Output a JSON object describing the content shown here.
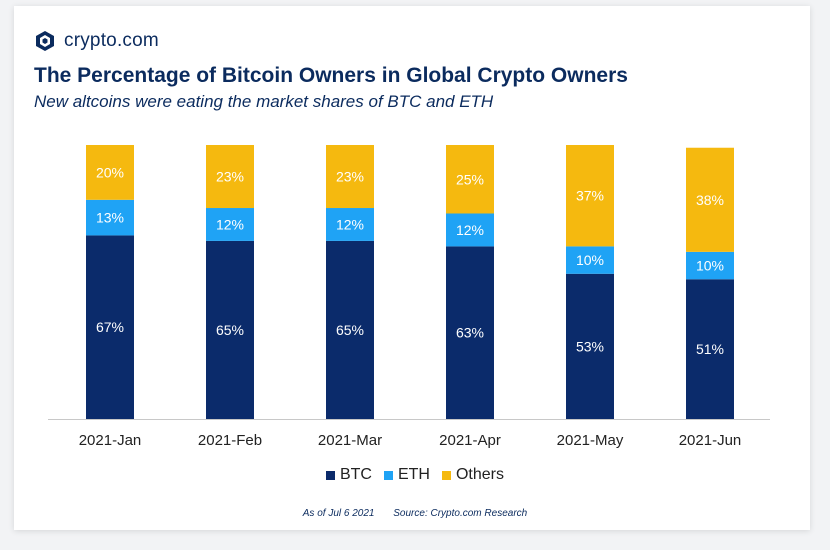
{
  "brand": {
    "name": "crypto.com",
    "icon": "crypto-com-logo-icon"
  },
  "header": {
    "title": "The Percentage of Bitcoin Owners in Global Crypto Owners",
    "subtitle": "New altcoins were eating the market shares of BTC and ETH"
  },
  "colors": {
    "btc": "#0b2b6b",
    "eth": "#1fa3f5",
    "others": "#f5b90f",
    "text_dark": "#0b2b5e"
  },
  "footer": {
    "date_note": "As of Jul 6 2021",
    "source_note": "Source: Crypto.com Research"
  },
  "chart_data": {
    "type": "bar",
    "stacked": true,
    "title": "The Percentage of Bitcoin Owners in Global Crypto Owners",
    "subtitle": "New altcoins were eating the market shares of BTC and ETH",
    "xlabel": "",
    "ylabel": "",
    "ylim": [
      0,
      100
    ],
    "grid": false,
    "legend_position": "bottom-center",
    "categories": [
      "2021-Jan",
      "2021-Feb",
      "2021-Mar",
      "2021-Apr",
      "2021-May",
      "2021-Jun"
    ],
    "series": [
      {
        "name": "BTC",
        "key": "btc",
        "values": [
          67,
          65,
          65,
          63,
          53,
          51
        ]
      },
      {
        "name": "ETH",
        "key": "eth",
        "values": [
          13,
          12,
          12,
          12,
          10,
          10
        ]
      },
      {
        "name": "Others",
        "key": "others",
        "values": [
          20,
          23,
          23,
          25,
          37,
          38
        ]
      }
    ],
    "value_suffix": "%"
  }
}
